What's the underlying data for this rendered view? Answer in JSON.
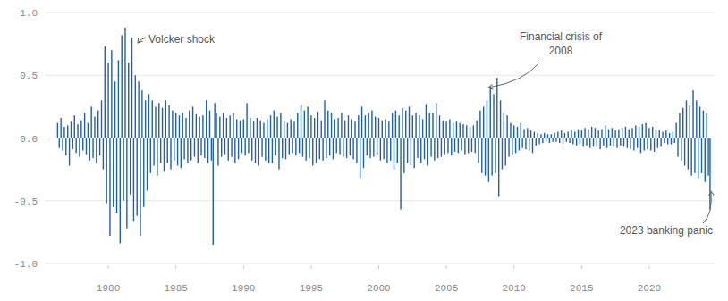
{
  "chart_data": {
    "type": "bar",
    "color": "#1f5fae",
    "grid": true,
    "xlim": [
      1975.3,
      2024.9
    ],
    "ylim": [
      -1,
      1
    ],
    "xticks": [
      1980,
      1985,
      1990,
      1995,
      2000,
      2005,
      2010,
      2015,
      2020
    ],
    "yticks": [
      {
        "value": -1,
        "label": "-1.0"
      },
      {
        "value": -0.5,
        "label": "-0.5"
      },
      {
        "value": 0,
        "label": "0.0"
      },
      {
        "value": 0.5,
        "label": "0.5"
      },
      {
        "value": 1,
        "label": "1.0"
      }
    ],
    "annotations": [
      {
        "text": "Volcker shock"
      },
      {
        "text": "Financial crisis of 2008"
      },
      {
        "text": "2023 banking panic"
      }
    ],
    "x": [
      1976.25,
      1976.375,
      1976.5,
      1976.625,
      1976.75,
      1976.875,
      1977,
      1977.125,
      1977.25,
      1977.375,
      1977.5,
      1977.625,
      1977.75,
      1977.875,
      1978,
      1978.125,
      1978.25,
      1978.375,
      1978.5,
      1978.625,
      1978.75,
      1978.875,
      1979,
      1979.125,
      1979.25,
      1979.375,
      1979.5,
      1979.625,
      1979.75,
      1979.875,
      1980,
      1980.125,
      1980.25,
      1980.375,
      1980.5,
      1980.625,
      1980.75,
      1980.875,
      1981,
      1981.125,
      1981.25,
      1981.375,
      1981.5,
      1981.625,
      1981.75,
      1981.875,
      1982,
      1982.125,
      1982.25,
      1982.375,
      1982.5,
      1982.625,
      1982.75,
      1982.875,
      1983,
      1983.125,
      1983.25,
      1983.375,
      1983.5,
      1983.625,
      1983.75,
      1983.875,
      1984,
      1984.125,
      1984.25,
      1984.375,
      1984.5,
      1984.625,
      1984.75,
      1984.875,
      1985,
      1985.125,
      1985.25,
      1985.375,
      1985.5,
      1985.625,
      1985.75,
      1985.875,
      1986,
      1986.125,
      1986.25,
      1986.375,
      1986.5,
      1986.625,
      1986.75,
      1986.875,
      1987,
      1987.125,
      1987.25,
      1987.375,
      1987.5,
      1987.625,
      1987.75,
      1987.875,
      1988,
      1988.125,
      1988.25,
      1988.375,
      1988.5,
      1988.625,
      1988.75,
      1988.875,
      1989,
      1989.125,
      1989.25,
      1989.375,
      1989.5,
      1989.625,
      1989.75,
      1989.875,
      1990,
      1990.125,
      1990.25,
      1990.375,
      1990.5,
      1990.625,
      1990.75,
      1990.875,
      1991,
      1991.125,
      1991.25,
      1991.375,
      1991.5,
      1991.625,
      1991.75,
      1991.875,
      1992,
      1992.125,
      1992.25,
      1992.375,
      1992.5,
      1992.625,
      1992.75,
      1992.875,
      1993,
      1993.125,
      1993.25,
      1993.375,
      1993.5,
      1993.625,
      1993.75,
      1993.875,
      1994,
      1994.125,
      1994.25,
      1994.375,
      1994.5,
      1994.625,
      1994.75,
      1994.875,
      1995,
      1995.125,
      1995.25,
      1995.375,
      1995.5,
      1995.625,
      1995.75,
      1995.875,
      1996,
      1996.125,
      1996.25,
      1996.375,
      1996.5,
      1996.625,
      1996.75,
      1996.875,
      1997,
      1997.125,
      1997.25,
      1997.375,
      1997.5,
      1997.625,
      1997.75,
      1997.875,
      1998,
      1998.125,
      1998.25,
      1998.375,
      1998.5,
      1998.625,
      1998.75,
      1998.875,
      1999,
      1999.125,
      1999.25,
      1999.375,
      1999.5,
      1999.625,
      1999.75,
      1999.875,
      2000,
      2000.125,
      2000.25,
      2000.375,
      2000.5,
      2000.625,
      2000.75,
      2000.875,
      2001,
      2001.125,
      2001.25,
      2001.375,
      2001.5,
      2001.625,
      2001.75,
      2001.875,
      2002,
      2002.125,
      2002.25,
      2002.375,
      2002.5,
      2002.625,
      2002.75,
      2002.875,
      2003,
      2003.125,
      2003.25,
      2003.375,
      2003.5,
      2003.625,
      2003.75,
      2003.875,
      2004,
      2004.125,
      2004.25,
      2004.375,
      2004.5,
      2004.625,
      2004.75,
      2004.875,
      2005,
      2005.125,
      2005.25,
      2005.375,
      2005.5,
      2005.625,
      2005.75,
      2005.875,
      2006,
      2006.125,
      2006.25,
      2006.375,
      2006.5,
      2006.625,
      2006.75,
      2006.875,
      2007,
      2007.125,
      2007.25,
      2007.375,
      2007.5,
      2007.625,
      2007.75,
      2007.875,
      2008,
      2008.125,
      2008.25,
      2008.375,
      2008.5,
      2008.625,
      2008.75,
      2008.875,
      2009,
      2009.125,
      2009.25,
      2009.375,
      2009.5,
      2009.625,
      2009.75,
      2009.875,
      2010,
      2010.125,
      2010.25,
      2010.375,
      2010.5,
      2010.625,
      2010.75,
      2010.875,
      2011,
      2011.125,
      2011.25,
      2011.375,
      2011.5,
      2011.625,
      2011.75,
      2011.875,
      2012,
      2012.125,
      2012.25,
      2012.375,
      2012.5,
      2012.625,
      2012.75,
      2012.875,
      2013,
      2013.125,
      2013.25,
      2013.375,
      2013.5,
      2013.625,
      2013.75,
      2013.875,
      2014,
      2014.125,
      2014.25,
      2014.375,
      2014.5,
      2014.625,
      2014.75,
      2014.875,
      2015,
      2015.125,
      2015.25,
      2015.375,
      2015.5,
      2015.625,
      2015.75,
      2015.875,
      2016,
      2016.125,
      2016.25,
      2016.375,
      2016.5,
      2016.625,
      2016.75,
      2016.875,
      2017,
      2017.125,
      2017.25,
      2017.375,
      2017.5,
      2017.625,
      2017.75,
      2017.875,
      2018,
      2018.125,
      2018.25,
      2018.375,
      2018.5,
      2018.625,
      2018.75,
      2018.875,
      2019,
      2019.125,
      2019.25,
      2019.375,
      2019.5,
      2019.625,
      2019.75,
      2019.875,
      2020,
      2020.125,
      2020.25,
      2020.375,
      2020.5,
      2020.625,
      2020.75,
      2020.875,
      2021,
      2021.125,
      2021.25,
      2021.375,
      2021.5,
      2021.625,
      2021.75,
      2021.875,
      2022,
      2022.125,
      2022.25,
      2022.375,
      2022.5,
      2022.625,
      2022.75,
      2022.875,
      2023,
      2023.125,
      2023.25,
      2023.375,
      2023.5,
      2023.625,
      2023.75,
      2023.875,
      2024,
      2024.125,
      2024.25,
      2024.375,
      2024.5
    ],
    "values": [
      0.12,
      -0.08,
      0.16,
      -0.1,
      0.09,
      -0.14,
      0.1,
      -0.22,
      0.13,
      -0.09,
      0.18,
      -0.12,
      0.11,
      -0.15,
      0.14,
      -0.1,
      0.2,
      -0.13,
      0.12,
      -0.18,
      0.25,
      -0.16,
      0.17,
      -0.2,
      0.22,
      -0.14,
      0.3,
      -0.25,
      0.73,
      -0.52,
      0.6,
      -0.78,
      0.7,
      -0.55,
      0.45,
      -0.6,
      0.62,
      -0.84,
      0.82,
      -0.5,
      0.88,
      -0.72,
      0.6,
      -0.45,
      0.8,
      -0.66,
      0.5,
      -0.62,
      0.45,
      -0.78,
      0.38,
      -0.55,
      0.3,
      -0.42,
      0.35,
      -0.28,
      0.3,
      -0.22,
      0.25,
      -0.3,
      0.28,
      -0.2,
      0.24,
      -0.27,
      0.3,
      -0.2,
      0.26,
      -0.25,
      0.22,
      -0.18,
      0.2,
      -0.22,
      0.18,
      -0.24,
      0.2,
      -0.17,
      0.16,
      -0.2,
      0.22,
      -0.18,
      0.25,
      -0.15,
      0.19,
      -0.2,
      0.17,
      -0.14,
      0.18,
      -0.16,
      0.3,
      -0.2,
      0.22,
      -0.18,
      -0.85,
      0.28,
      0.2,
      -0.22,
      0.17,
      -0.15,
      0.2,
      -0.13,
      0.16,
      -0.18,
      0.18,
      -0.15,
      0.2,
      -0.2,
      0.15,
      -0.17,
      0.14,
      -0.12,
      0.15,
      -0.14,
      0.28,
      -0.12,
      0.16,
      -0.18,
      0.13,
      -0.2,
      0.16,
      -0.22,
      0.14,
      -0.15,
      0.12,
      -0.18,
      0.15,
      -0.2,
      0.18,
      -0.2,
      0.22,
      -0.14,
      0.17,
      -0.25,
      0.2,
      -0.16,
      0.14,
      -0.17,
      0.12,
      -0.13,
      0.15,
      -0.12,
      0.13,
      -0.14,
      0.2,
      -0.12,
      0.26,
      -0.15,
      0.22,
      -0.18,
      0.25,
      -0.16,
      0.18,
      -0.22,
      0.16,
      -0.2,
      0.21,
      -0.17,
      0.14,
      -0.18,
      0.3,
      -0.16,
      0.22,
      -0.14,
      0.2,
      -0.17,
      0.15,
      -0.12,
      0.16,
      -0.13,
      0.2,
      -0.15,
      0.14,
      -0.16,
      0.18,
      -0.14,
      0.15,
      -0.17,
      0.13,
      -0.2,
      0.18,
      -0.32,
      0.25,
      -0.24,
      0.18,
      -0.14,
      0.2,
      -0.16,
      0.22,
      -0.15,
      0.17,
      -0.13,
      0.16,
      -0.18,
      0.14,
      -0.17,
      0.15,
      -0.2,
      0.13,
      -0.18,
      0.2,
      -0.25,
      0.22,
      -0.2,
      0.18,
      -0.57,
      0.24,
      -0.28,
      0.22,
      -0.2,
      0.25,
      -0.22,
      0.18,
      -0.24,
      0.2,
      -0.16,
      0.18,
      -0.2,
      0.15,
      -0.17,
      0.27,
      -0.22,
      0.2,
      -0.15,
      0.2,
      -0.18,
      0.28,
      -0.16,
      0.18,
      -0.15,
      0.14,
      -0.13,
      0.13,
      -0.12,
      0.15,
      -0.14,
      0.12,
      -0.11,
      0.13,
      -0.12,
      0.12,
      -0.1,
      0.11,
      -0.13,
      0.1,
      -0.12,
      0.09,
      -0.11,
      0.1,
      -0.12,
      0.14,
      -0.2,
      0.22,
      -0.28,
      0.25,
      -0.3,
      0.3,
      -0.35,
      0.4,
      -0.3,
      0.35,
      -0.28,
      0.48,
      -0.47,
      0.3,
      -0.25,
      0.2,
      -0.22,
      0.18,
      -0.15,
      0.12,
      -0.13,
      0.1,
      -0.12,
      0.09,
      -0.1,
      0.12,
      -0.08,
      0.07,
      -0.09,
      0.08,
      -0.1,
      0.06,
      -0.12,
      0.05,
      -0.06,
      0.04,
      -0.05,
      0.03,
      -0.04,
      0.04,
      -0.03,
      0.03,
      -0.04,
      0.03,
      -0.03,
      0.04,
      -0.03,
      0.05,
      -0.04,
      0.06,
      -0.05,
      0.04,
      -0.03,
      0.05,
      -0.04,
      0.06,
      -0.05,
      0.05,
      -0.06,
      0.07,
      -0.05,
      0.06,
      -0.07,
      0.08,
      -0.06,
      0.07,
      -0.08,
      0.09,
      -0.07,
      0.08,
      -0.07,
      0.06,
      -0.09,
      0.07,
      -0.06,
      0.1,
      -0.08,
      0.07,
      -0.06,
      0.08,
      -0.07,
      0.06,
      -0.08,
      0.07,
      -0.06,
      0.08,
      -0.07,
      0.09,
      -0.08,
      0.07,
      -0.09,
      0.08,
      -0.1,
      0.1,
      -0.08,
      0.09,
      -0.12,
      0.11,
      -0.1,
      0.12,
      -0.09,
      0.08,
      -0.1,
      0.09,
      -0.11,
      0.07,
      -0.08,
      0.06,
      -0.07,
      0.05,
      -0.04,
      0.06,
      -0.05,
      0.04,
      -0.05,
      0.05,
      -0.04,
      0.12,
      -0.15,
      0.2,
      -0.18,
      0.24,
      -0.22,
      0.3,
      -0.25,
      0.26,
      -0.3,
      0.38,
      -0.28,
      0.3,
      -0.32,
      0.25,
      -0.28,
      0.22,
      -0.35,
      0.2,
      -0.3,
      -0.57
    ]
  }
}
